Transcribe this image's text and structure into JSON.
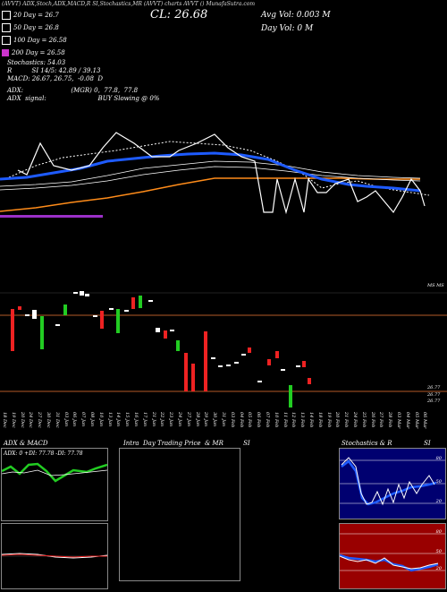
{
  "header": {
    "top_info": "(AVVT)  ADX,Stoch,ADX,MACD,R   SI,Stochastics,MR   (AVVT) charts AVVT   () MunafaSutra.com",
    "close_label": "CL: 26.68",
    "avg_vol": "Avg Vol: 0.003 M",
    "day_vol": "Day Vol: 0  M",
    "legend": [
      {
        "label": "20  Day = 26.7",
        "color": "#ffffff"
      },
      {
        "label": "50  Day = 26.8",
        "color": "#ffffff"
      },
      {
        "label": "100  Day = 26.58",
        "color": "#ffffff"
      },
      {
        "label": "200  Day = 26.58",
        "color": "#cc33cc"
      }
    ],
    "stochastics": "Stochastics: 54.03",
    "rsi": "R          SI 14/5: 42.89 / 39.13",
    "macd": "MACD: 26.67, 26.75,  -0.08  D",
    "adx": "ADX:                        (MGR) 0,  77.8,  77.8",
    "adx_signal": "ADX  signal:                          BUY Slowing @ 0%"
  },
  "price_axis_labels": [
    "26.77",
    "26.77",
    "26.77"
  ],
  "date_labels": [
    "18 Dec",
    "19 Dec",
    "20 Dec",
    "24 Dec",
    "27 Dec",
    "30 Dec",
    "31 Dec",
    "03 Jan",
    "06 Jan",
    "07 Jan",
    "08 Jan",
    "10 Jan",
    "13 Jan",
    "14 Jan",
    "15 Jan",
    "16 Jan",
    "17 Jan",
    "21 Jan",
    "22 Jan",
    "23 Jan",
    "24 Jan",
    "27 Jan",
    "28 Jan",
    "29 Jan",
    "30 Jan",
    "31 Jan",
    "03 Feb",
    "04 Feb",
    "05 Feb",
    "06 Feb",
    "07 Feb",
    "10 Feb",
    "11 Feb",
    "12 Feb",
    "13 Feb",
    "14 Feb",
    "18 Feb",
    "19 Feb",
    "20 Feb",
    "21 Feb",
    "24 Feb",
    "25 Feb",
    "26 Feb",
    "27 Feb",
    "28 Feb",
    "03 Mar",
    "04 Mar",
    "05 Mar",
    "06 Mar"
  ],
  "watermark_small": "MS MS",
  "panels": {
    "adx_title": "ADX  & MACD",
    "adx_values": "ADX: 0   +DI: 77.78   -DI: 77.78",
    "mr_title": "Intra  Day Trading Price  & MR          SI",
    "stoch_title": "Stochastics & R                SI",
    "stoch_ticks": [
      "80",
      "50",
      "20"
    ],
    "rsi_ticks": [
      "80",
      "50",
      "20"
    ]
  },
  "chart_data": {
    "type": "candlestick",
    "title": "AVVT",
    "close": 26.68,
    "moving_averages": [
      {
        "name": "20 Day",
        "value": 26.7
      },
      {
        "name": "50 Day",
        "value": 26.8
      },
      {
        "name": "100 Day",
        "value": 26.58
      },
      {
        "name": "200 Day",
        "value": 26.58
      }
    ],
    "indicators": {
      "stochastics": 54.03,
      "rsi": [
        42.89,
        39.13
      ],
      "macd": [
        26.67,
        26.75,
        -0.08
      ],
      "adx": [
        0,
        77.78,
        77.78
      ]
    },
    "colors": {
      "up": "#22cc22",
      "down": "#ee2222",
      "sma_blue": "#1e5bff",
      "orange": "#ff8c1a",
      "purple": "#9b30c8",
      "brown_line": "#b55a28"
    }
  }
}
